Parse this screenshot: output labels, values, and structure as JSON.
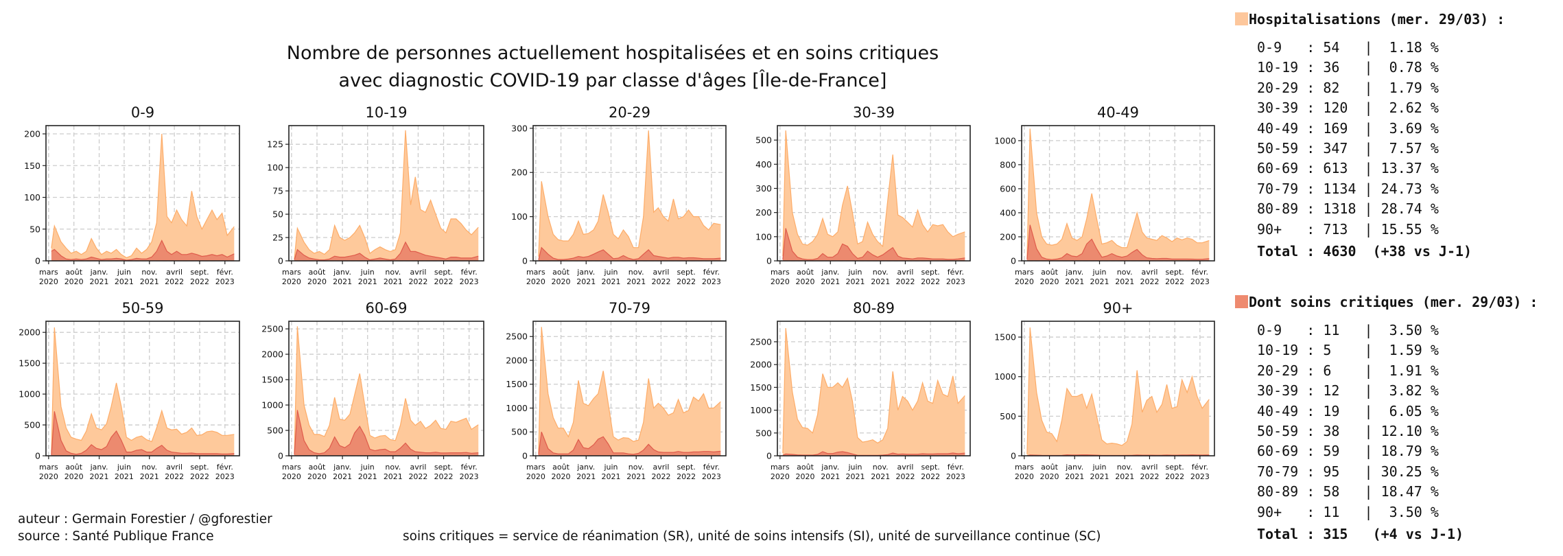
{
  "title_lines": [
    "Nombre de personnes actuellement hospitalisées et en soins critiques",
    "avec diagnostic COVID-19 par classe d'âges [Île-de-France]"
  ],
  "colors": {
    "hospitalisations_fill": "#fec99b",
    "hospitalisations_line": "#fdac68",
    "soins_critiques_fill": "#ec8a6f",
    "soins_critiques_line": "#df5b4b",
    "grid": "#cccccc"
  },
  "legend": {
    "hospitalisations": {
      "header": "Hospitalisations (mer. 29/03) :",
      "rows": [
        "0-9   : 54   |  1.18 %",
        "10-19 : 36   |  0.78 %",
        "20-29 : 82   |  1.79 %",
        "30-39 : 120  |  2.62 %",
        "40-49 : 169  |  3.69 %",
        "50-59 : 347  |  7.57 %",
        "60-69 : 613  | 13.37 %",
        "70-79 : 1134 | 24.73 %",
        "80-89 : 1318 | 28.74 %",
        "90+   : 713  | 15.55 %"
      ],
      "total": "Total : 4630  (+38 vs J-1)"
    },
    "soins_critiques": {
      "header": "Dont soins critiques (mer. 29/03) :",
      "rows": [
        "0-9   : 11   |  3.50 %",
        "10-19 : 5    |  1.59 %",
        "20-29 : 6    |  1.91 %",
        "30-39 : 12   |  3.82 %",
        "40-49 : 19   |  6.05 %",
        "50-59 : 38   | 12.10 %",
        "60-69 : 59   | 18.79 %",
        "70-79 : 95   | 30.25 %",
        "80-89 : 58   | 18.47 %",
        "90+   : 11   |  3.50 %"
      ],
      "total": "Total : 315   (+4 vs J-1)"
    }
  },
  "footer": {
    "author": "auteur : Germain Forestier / @gforestier",
    "source": "source : Santé Publique France",
    "note": "soins critiques = service de réanimation (SR), unité de soins intensifs (SI), unité de surveillance continue (SC)"
  },
  "chart_data": {
    "type": "area",
    "grid": true,
    "xlim": [
      "2020-02-14",
      "2023-04-30"
    ],
    "x_ticks": [
      {
        "date": "2020-03-01",
        "label": [
          "mars",
          "2020"
        ]
      },
      {
        "date": "2020-08-01",
        "label": [
          "août",
          "2020"
        ]
      },
      {
        "date": "2021-01-01",
        "label": [
          "janv.",
          "2021"
        ]
      },
      {
        "date": "2021-06-01",
        "label": [
          "juin",
          "2021"
        ]
      },
      {
        "date": "2021-11-01",
        "label": [
          "nov.",
          "2021"
        ]
      },
      {
        "date": "2022-04-01",
        "label": [
          "avril",
          "2022"
        ]
      },
      {
        "date": "2022-09-01",
        "label": [
          "sept.",
          "2022"
        ]
      },
      {
        "date": "2023-02-01",
        "label": [
          "févr.",
          "2023"
        ]
      }
    ],
    "dates": [
      "2020-03-18",
      "2020-04-05",
      "2020-05-15",
      "2020-06-15",
      "2020-07-15",
      "2020-08-15",
      "2020-09-15",
      "2020-10-15",
      "2020-11-15",
      "2020-12-15",
      "2021-01-15",
      "2021-02-15",
      "2021-03-15",
      "2021-04-15",
      "2021-05-15",
      "2021-06-15",
      "2021-07-15",
      "2021-08-15",
      "2021-09-15",
      "2021-10-15",
      "2021-11-15",
      "2021-12-15",
      "2022-01-15",
      "2022-02-15",
      "2022-03-15",
      "2022-04-15",
      "2022-05-15",
      "2022-06-15",
      "2022-07-15",
      "2022-08-15",
      "2022-09-15",
      "2022-10-15",
      "2022-11-15",
      "2022-12-15",
      "2023-01-15",
      "2023-02-15",
      "2023-03-29"
    ],
    "panels": [
      {
        "title": "0-9",
        "ylim": [
          0,
          213
        ],
        "y_ticks": [
          0,
          50,
          100,
          150,
          200
        ],
        "hospitalisations": [
          20,
          55,
          30,
          20,
          12,
          15,
          10,
          15,
          35,
          20,
          10,
          15,
          12,
          18,
          10,
          5,
          8,
          20,
          12,
          18,
          30,
          60,
          200,
          70,
          60,
          80,
          65,
          55,
          110,
          70,
          50,
          65,
          80,
          65,
          75,
          40,
          54
        ],
        "soins_critiques": [
          15,
          18,
          8,
          3,
          2,
          3,
          2,
          3,
          6,
          4,
          2,
          3,
          3,
          4,
          3,
          1,
          2,
          4,
          3,
          3,
          6,
          15,
          32,
          15,
          10,
          15,
          10,
          10,
          12,
          10,
          7,
          8,
          10,
          8,
          10,
          6,
          11
        ]
      },
      {
        "title": "10-19",
        "ylim": [
          0,
          145
        ],
        "y_ticks": [
          0,
          25,
          50,
          75,
          100,
          125
        ],
        "hospitalisations": [
          2,
          35,
          20,
          12,
          8,
          10,
          7,
          12,
          38,
          25,
          22,
          25,
          30,
          38,
          25,
          8,
          12,
          15,
          12,
          10,
          12,
          30,
          140,
          60,
          90,
          55,
          52,
          65,
          50,
          35,
          30,
          45,
          45,
          40,
          33,
          28,
          36
        ],
        "soins_critiques": [
          1,
          12,
          6,
          3,
          2,
          1,
          1,
          2,
          5,
          4,
          4,
          5,
          6,
          8,
          4,
          1,
          2,
          3,
          2,
          1,
          2,
          8,
          20,
          10,
          10,
          8,
          6,
          5,
          4,
          3,
          2,
          4,
          4,
          3,
          3,
          3,
          5
        ]
      },
      {
        "title": "20-29",
        "ylim": [
          0,
          306
        ],
        "y_ticks": [
          0,
          100,
          200,
          300
        ],
        "hospitalisations": [
          10,
          180,
          100,
          60,
          48,
          45,
          45,
          60,
          90,
          60,
          62,
          70,
          90,
          150,
          110,
          60,
          50,
          70,
          55,
          30,
          30,
          100,
          295,
          110,
          120,
          100,
          90,
          140,
          95,
          100,
          115,
          100,
          100,
          80,
          70,
          85,
          82
        ],
        "soins_critiques": [
          2,
          30,
          15,
          6,
          3,
          3,
          4,
          6,
          10,
          8,
          10,
          15,
          20,
          25,
          15,
          5,
          6,
          12,
          6,
          3,
          5,
          15,
          25,
          12,
          10,
          8,
          6,
          8,
          8,
          6,
          7,
          7,
          6,
          5,
          5,
          5,
          6
        ]
      },
      {
        "title": "30-39",
        "ylim": [
          0,
          560
        ],
        "y_ticks": [
          0,
          100,
          200,
          300,
          400,
          500
        ],
        "hospitalisations": [
          20,
          540,
          200,
          110,
          70,
          65,
          80,
          110,
          175,
          110,
          100,
          120,
          230,
          310,
          200,
          70,
          80,
          160,
          110,
          80,
          60,
          250,
          440,
          190,
          180,
          160,
          140,
          210,
          150,
          120,
          150,
          145,
          150,
          120,
          100,
          110,
          120
        ],
        "soins_critiques": [
          5,
          135,
          40,
          15,
          8,
          5,
          5,
          10,
          30,
          15,
          15,
          30,
          70,
          60,
          30,
          10,
          15,
          40,
          25,
          15,
          25,
          40,
          55,
          20,
          12,
          10,
          8,
          12,
          12,
          10,
          8,
          8,
          8,
          6,
          6,
          8,
          12
        ]
      },
      {
        "title": "40-49",
        "ylim": [
          0,
          1125
        ],
        "y_ticks": [
          0,
          200,
          400,
          600,
          800,
          1000
        ],
        "hospitalisations": [
          20,
          1100,
          400,
          200,
          140,
          130,
          140,
          180,
          310,
          190,
          170,
          200,
          350,
          560,
          350,
          140,
          150,
          170,
          130,
          110,
          110,
          250,
          400,
          240,
          190,
          180,
          170,
          210,
          190,
          160,
          190,
          175,
          190,
          180,
          150,
          150,
          169
        ],
        "soins_critiques": [
          10,
          300,
          100,
          30,
          15,
          10,
          15,
          25,
          60,
          40,
          35,
          60,
          140,
          180,
          100,
          30,
          40,
          60,
          40,
          30,
          40,
          70,
          95,
          50,
          25,
          20,
          18,
          20,
          20,
          15,
          15,
          15,
          15,
          14,
          13,
          13,
          19
        ]
      },
      {
        "title": "50-59",
        "ylim": [
          0,
          2180
        ],
        "y_ticks": [
          0,
          500,
          1000,
          1500,
          2000
        ],
        "hospitalisations": [
          30,
          2080,
          800,
          450,
          300,
          270,
          250,
          400,
          680,
          450,
          420,
          520,
          800,
          1180,
          800,
          300,
          250,
          300,
          320,
          260,
          230,
          450,
          730,
          450,
          420,
          430,
          350,
          380,
          450,
          330,
          340,
          390,
          400,
          380,
          330,
          330,
          347
        ],
        "soins_critiques": [
          10,
          720,
          250,
          80,
          40,
          25,
          40,
          90,
          180,
          120,
          100,
          150,
          300,
          400,
          250,
          60,
          60,
          90,
          100,
          60,
          60,
          120,
          170,
          90,
          60,
          50,
          40,
          40,
          45,
          35,
          35,
          35,
          35,
          35,
          30,
          30,
          38
        ]
      },
      {
        "title": "60-69",
        "ylim": [
          0,
          2650
        ],
        "y_ticks": [
          0,
          500,
          1000,
          1500,
          2000,
          2500
        ],
        "hospitalisations": [
          40,
          2550,
          1000,
          600,
          420,
          420,
          380,
          600,
          1150,
          720,
          700,
          820,
          1200,
          1620,
          1000,
          400,
          350,
          390,
          400,
          320,
          300,
          600,
          1130,
          700,
          600,
          680,
          540,
          600,
          700,
          540,
          520,
          680,
          660,
          700,
          740,
          520,
          613
        ],
        "soins_critiques": [
          20,
          900,
          300,
          120,
          60,
          40,
          60,
          150,
          370,
          200,
          160,
          230,
          450,
          580,
          400,
          130,
          100,
          120,
          130,
          80,
          80,
          150,
          250,
          130,
          80,
          70,
          60,
          60,
          70,
          55,
          55,
          60,
          60,
          60,
          65,
          50,
          59
        ]
      },
      {
        "title": "70-79",
        "ylim": [
          0,
          2820
        ],
        "y_ticks": [
          0,
          500,
          1000,
          1500,
          2000,
          2500
        ],
        "hospitalisations": [
          50,
          2700,
          1300,
          800,
          580,
          580,
          400,
          700,
          1580,
          1100,
          1050,
          1200,
          1300,
          1780,
          1100,
          400,
          330,
          380,
          370,
          300,
          330,
          700,
          1620,
          1000,
          1100,
          1000,
          850,
          900,
          1180,
          900,
          950,
          1230,
          1150,
          1300,
          1000,
          1000,
          1134
        ],
        "soins_critiques": [
          20,
          500,
          150,
          60,
          40,
          40,
          40,
          120,
          340,
          170,
          150,
          230,
          350,
          400,
          250,
          60,
          60,
          60,
          40,
          30,
          50,
          120,
          240,
          130,
          80,
          70,
          70,
          70,
          90,
          70,
          70,
          80,
          80,
          90,
          90,
          80,
          95
        ]
      },
      {
        "title": "80-89",
        "ylim": [
          0,
          2950
        ],
        "y_ticks": [
          0,
          500,
          1000,
          1500,
          2000,
          2500
        ],
        "hospitalisations": [
          60,
          2800,
          1400,
          800,
          620,
          600,
          500,
          900,
          1800,
          1500,
          1500,
          1600,
          1500,
          1700,
          1200,
          400,
          300,
          320,
          350,
          280,
          350,
          600,
          1850,
          1000,
          1300,
          1200,
          1000,
          1200,
          1600,
          1200,
          1150,
          1650,
          1350,
          1300,
          1750,
          1150,
          1318
        ],
        "soins_critiques": [
          10,
          40,
          30,
          20,
          15,
          15,
          15,
          30,
          90,
          50,
          50,
          80,
          90,
          70,
          40,
          10,
          10,
          10,
          10,
          10,
          15,
          25,
          60,
          35,
          40,
          35,
          35,
          35,
          45,
          40,
          40,
          45,
          45,
          45,
          60,
          45,
          58
        ]
      },
      {
        "title": "90+",
        "ylim": [
          0,
          1700
        ],
        "y_ticks": [
          0,
          500,
          1000,
          1500
        ],
        "hospitalisations": [
          20,
          1620,
          800,
          450,
          300,
          280,
          180,
          450,
          850,
          750,
          750,
          780,
          600,
          780,
          500,
          200,
          150,
          160,
          150,
          130,
          180,
          400,
          1080,
          550,
          700,
          750,
          550,
          650,
          900,
          600,
          620,
          960,
          800,
          1000,
          750,
          600,
          713
        ],
        "soins_critiques": [
          2,
          10,
          8,
          5,
          4,
          4,
          4,
          6,
          12,
          10,
          10,
          12,
          12,
          10,
          8,
          4,
          4,
          4,
          4,
          4,
          5,
          6,
          10,
          8,
          8,
          8,
          7,
          8,
          10,
          8,
          8,
          10,
          10,
          12,
          10,
          9,
          11
        ]
      }
    ]
  }
}
